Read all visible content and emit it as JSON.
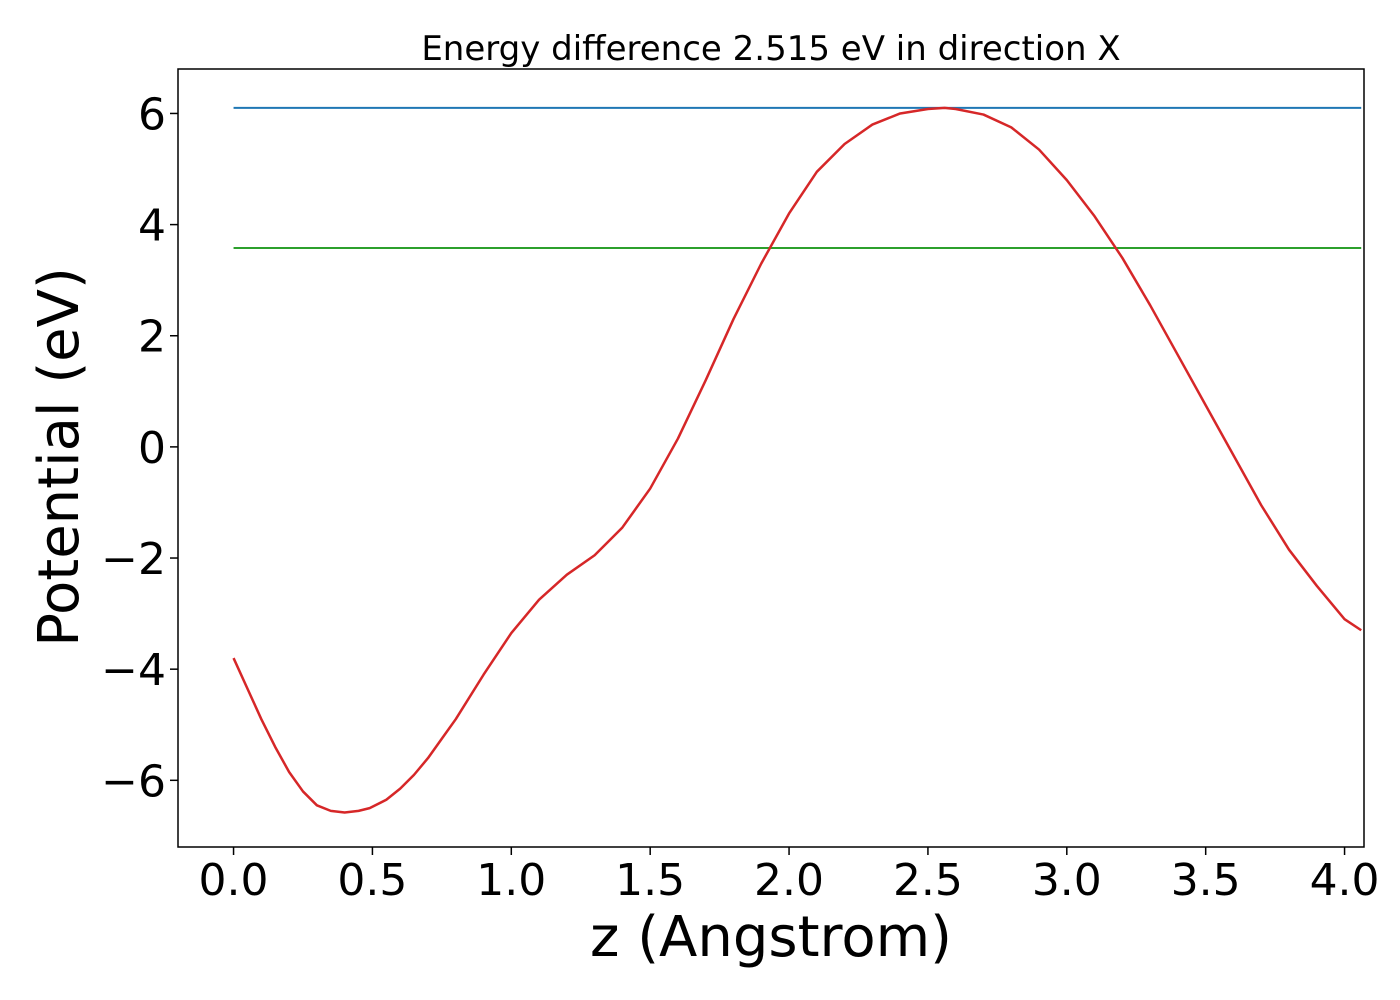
{
  "chart_data": {
    "type": "line",
    "title": "Energy difference 2.515 eV in direction X",
    "xlabel": "z (Angstrom)",
    "ylabel": "Potential (eV)",
    "xlim": [
      -0.2,
      4.07
    ],
    "ylim": [
      -7.2,
      6.8
    ],
    "x_ticks": [
      0.0,
      0.5,
      1.0,
      1.5,
      2.0,
      2.5,
      3.0,
      3.5,
      4.0
    ],
    "x_tick_labels": [
      "0.0",
      "0.5",
      "1.0",
      "1.5",
      "2.0",
      "2.5",
      "3.0",
      "3.5",
      "4.0"
    ],
    "y_ticks": [
      -6,
      -4,
      -2,
      0,
      2,
      4,
      6
    ],
    "y_tick_labels": [
      "−6",
      "−4",
      "−2",
      "0",
      "2",
      "4",
      "6"
    ],
    "grid": false,
    "series": [
      {
        "color": "#1f77b4",
        "x": [
          0.0,
          4.06
        ],
        "y": [
          6.1,
          6.1
        ]
      },
      {
        "color": "#2ca02c",
        "x": [
          0.0,
          4.06
        ],
        "y": [
          3.58,
          3.58
        ]
      },
      {
        "color": "#d62728",
        "x": [
          0.0,
          0.05,
          0.1,
          0.15,
          0.2,
          0.25,
          0.3,
          0.35,
          0.4,
          0.45,
          0.49,
          0.55,
          0.6,
          0.65,
          0.7,
          0.75,
          0.8,
          0.9,
          1.0,
          1.1,
          1.2,
          1.3,
          1.4,
          1.5,
          1.6,
          1.7,
          1.8,
          1.9,
          2.0,
          2.1,
          2.2,
          2.3,
          2.4,
          2.5,
          2.56,
          2.6,
          2.7,
          2.8,
          2.9,
          3.0,
          3.1,
          3.2,
          3.3,
          3.4,
          3.5,
          3.6,
          3.7,
          3.8,
          3.9,
          4.0,
          4.06
        ],
        "y": [
          -3.8,
          -4.35,
          -4.9,
          -5.4,
          -5.85,
          -6.2,
          -6.45,
          -6.55,
          -6.58,
          -6.55,
          -6.5,
          -6.35,
          -6.15,
          -5.9,
          -5.6,
          -5.25,
          -4.9,
          -4.1,
          -3.35,
          -2.75,
          -2.3,
          -1.95,
          -1.45,
          -0.75,
          0.15,
          1.2,
          2.3,
          3.3,
          4.2,
          4.95,
          5.45,
          5.8,
          6.0,
          6.08,
          6.1,
          6.08,
          5.98,
          5.75,
          5.35,
          4.8,
          4.15,
          3.4,
          2.55,
          1.65,
          0.75,
          -0.15,
          -1.05,
          -1.85,
          -2.5,
          -3.1,
          -3.3
        ]
      }
    ]
  }
}
